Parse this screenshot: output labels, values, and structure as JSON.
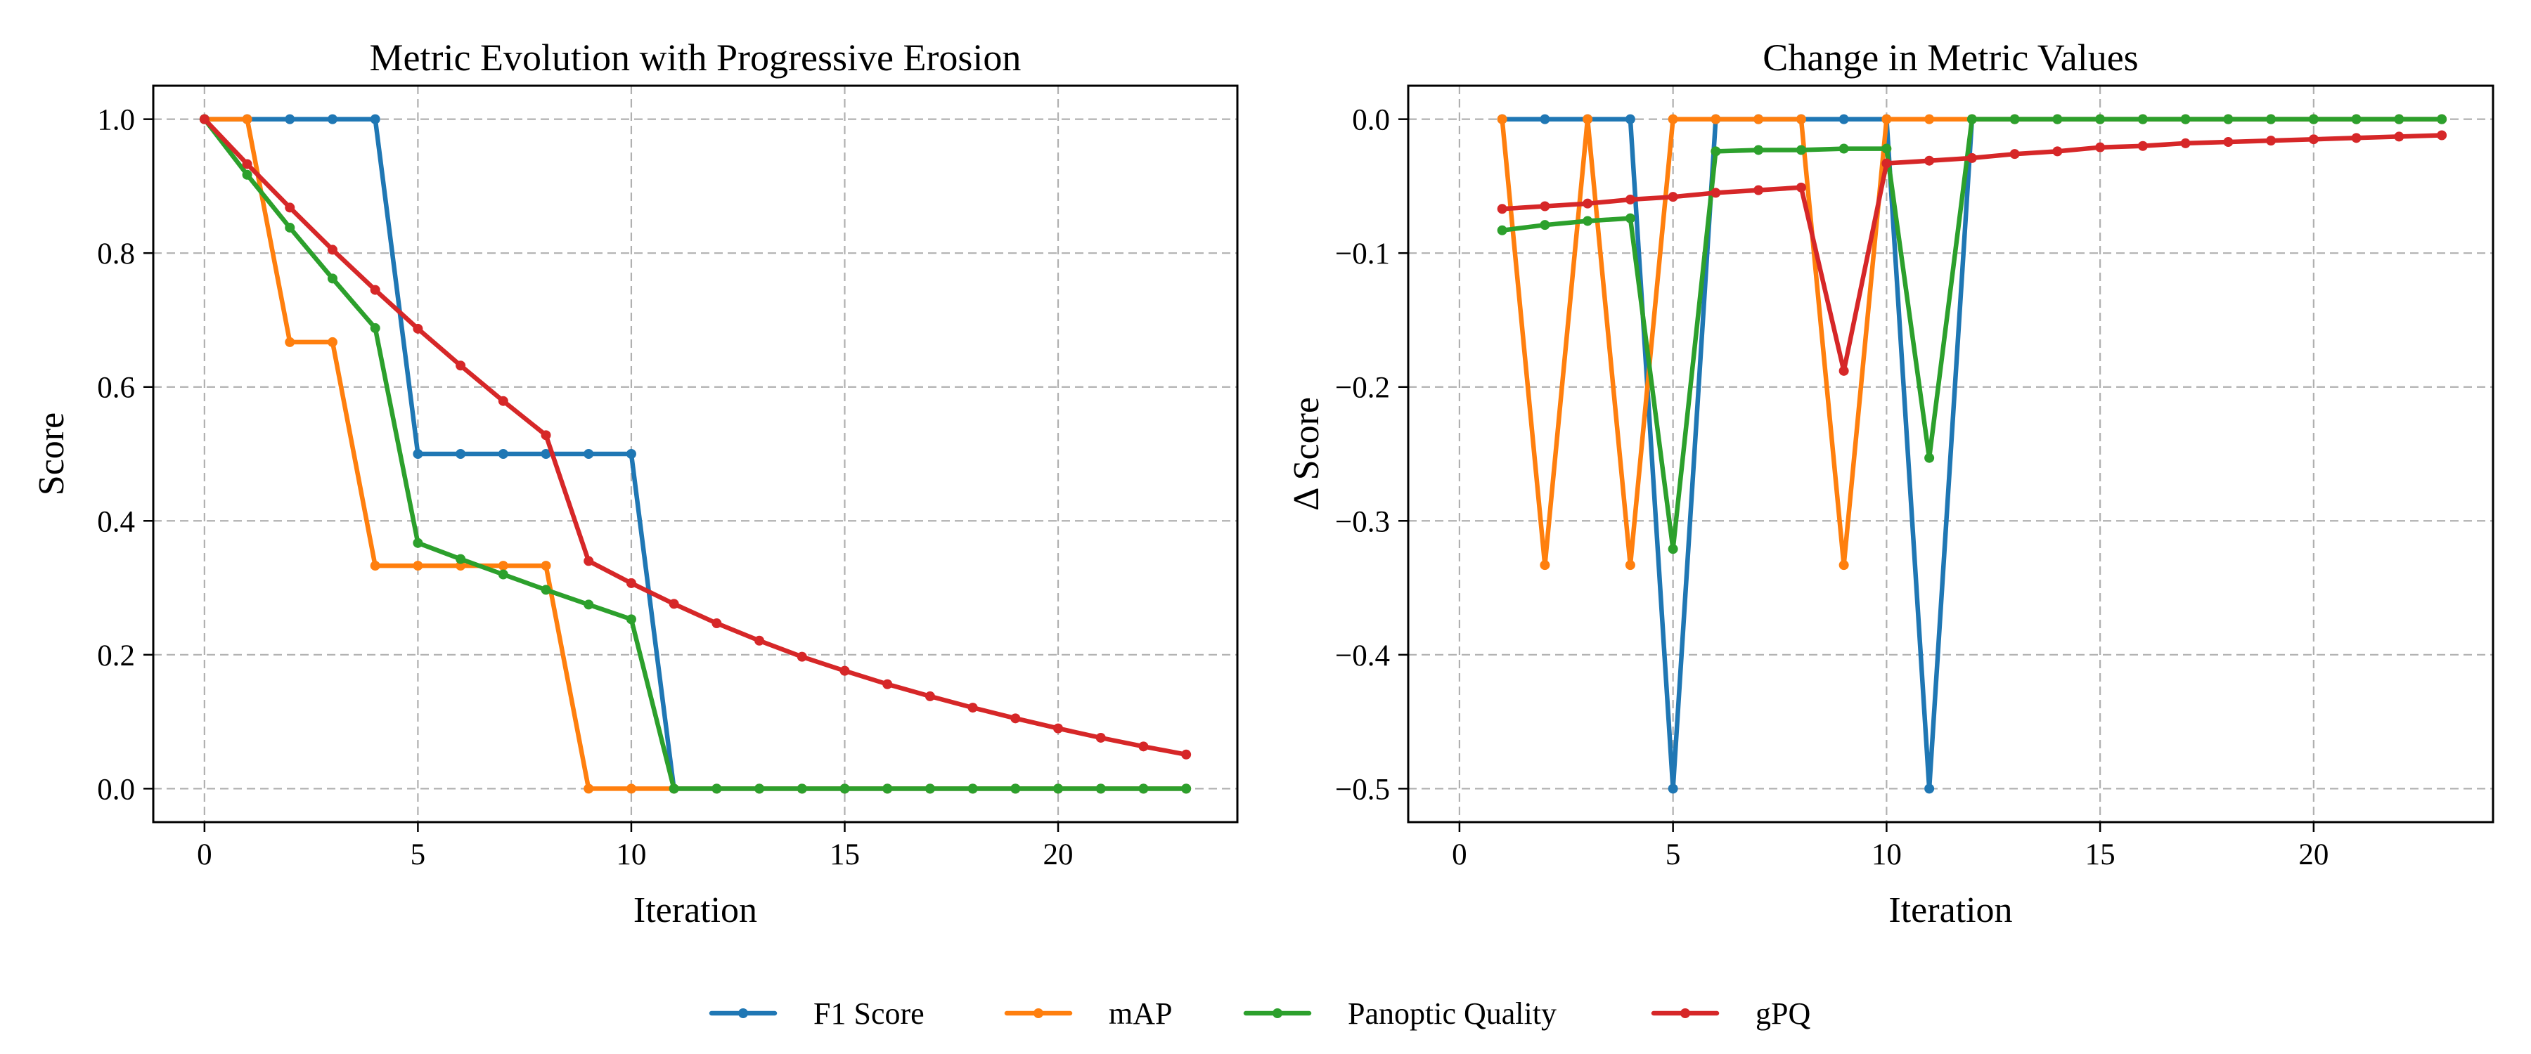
{
  "chart_data": [
    {
      "type": "line",
      "title": "Metric Evolution with Progressive Erosion",
      "xlabel": "Iteration",
      "ylabel": "Score",
      "xlim": [
        -1.2,
        24.2
      ],
      "ylim": [
        -0.05,
        1.05
      ],
      "xticks": [
        0,
        5,
        10,
        15,
        20
      ],
      "yticks": [
        0.0,
        0.2,
        0.4,
        0.6,
        0.8,
        1.0
      ],
      "ytick_labels": [
        "0.0",
        "0.2",
        "0.4",
        "0.6",
        "0.8",
        "1.0"
      ],
      "grid": true,
      "series": [
        {
          "name": "F1 Score",
          "x": [
            0,
            1,
            2,
            3,
            4,
            5,
            6,
            7,
            8,
            9,
            10,
            11,
            12,
            13,
            14,
            15,
            16,
            17,
            18,
            19,
            20,
            21,
            22,
            23
          ],
          "values": [
            1.0,
            1.0,
            1.0,
            1.0,
            1.0,
            0.5,
            0.5,
            0.5,
            0.5,
            0.5,
            0.5,
            0,
            0,
            0,
            0,
            0,
            0,
            0,
            0,
            0,
            0,
            0,
            0,
            0
          ]
        },
        {
          "name": "mAP",
          "x": [
            0,
            1,
            2,
            3,
            4,
            5,
            6,
            7,
            8,
            9,
            10,
            11,
            12,
            13,
            14,
            15,
            16,
            17,
            18,
            19,
            20,
            21,
            22,
            23
          ],
          "values": [
            1.0,
            1.0,
            0.667,
            0.667,
            0.333,
            0.333,
            0.333,
            0.333,
            0.333,
            0,
            0,
            0,
            0,
            0,
            0,
            0,
            0,
            0,
            0,
            0,
            0,
            0,
            0,
            0
          ]
        },
        {
          "name": "Panoptic Quality",
          "x": [
            0,
            1,
            2,
            3,
            4,
            5,
            6,
            7,
            8,
            9,
            10,
            11,
            12,
            13,
            14,
            15,
            16,
            17,
            18,
            19,
            20,
            21,
            22,
            23
          ],
          "values": [
            1.0,
            0.917,
            0.838,
            0.762,
            0.688,
            0.367,
            0.343,
            0.32,
            0.297,
            0.275,
            0.253,
            0,
            0,
            0,
            0,
            0,
            0,
            0,
            0,
            0,
            0,
            0,
            0,
            0
          ]
        },
        {
          "name": "gPQ",
          "x": [
            0,
            1,
            2,
            3,
            4,
            5,
            6,
            7,
            8,
            9,
            10,
            11,
            12,
            13,
            14,
            15,
            16,
            17,
            18,
            19,
            20,
            21,
            22,
            23
          ],
          "values": [
            1.0,
            0.933,
            0.868,
            0.805,
            0.745,
            0.687,
            0.632,
            0.579,
            0.528,
            0.34,
            0.307,
            0.276,
            0.247,
            0.221,
            0.197,
            0.176,
            0.156,
            0.138,
            0.121,
            0.105,
            0.09,
            0.076,
            0.063,
            0.051
          ]
        }
      ]
    },
    {
      "type": "line",
      "title": "Change in Metric Values",
      "xlabel": "Iteration",
      "ylabel": "Δ Score",
      "xlim": [
        -1.2,
        24.2
      ],
      "ylim": [
        -0.525,
        0.025
      ],
      "xticks": [
        0,
        5,
        10,
        15,
        20
      ],
      "yticks": [
        0.0,
        -0.1,
        -0.2,
        -0.3,
        -0.4,
        -0.5
      ],
      "ytick_labels": [
        "0.0",
        "−0.1",
        "−0.2",
        "−0.3",
        "−0.4",
        "−0.5"
      ],
      "grid": true,
      "series": [
        {
          "name": "F1 Score",
          "x": [
            1,
            2,
            3,
            4,
            5,
            6,
            7,
            8,
            9,
            10,
            11,
            12,
            13,
            14,
            15,
            16,
            17,
            18,
            19,
            20,
            21,
            22,
            23
          ],
          "values": [
            0,
            0,
            0,
            0,
            -0.5,
            0,
            0,
            0,
            0,
            0,
            -0.5,
            0,
            0,
            0,
            0,
            0,
            0,
            0,
            0,
            0,
            0,
            0,
            0
          ]
        },
        {
          "name": "mAP",
          "x": [
            1,
            2,
            3,
            4,
            5,
            6,
            7,
            8,
            9,
            10,
            11,
            12,
            13,
            14,
            15,
            16,
            17,
            18,
            19,
            20,
            21,
            22,
            23
          ],
          "values": [
            0,
            -0.333,
            0,
            -0.333,
            0,
            0,
            0,
            0,
            -0.333,
            0,
            0,
            0,
            0,
            0,
            0,
            0,
            0,
            0,
            0,
            0,
            0,
            0,
            0
          ]
        },
        {
          "name": "Panoptic Quality",
          "x": [
            1,
            2,
            3,
            4,
            5,
            6,
            7,
            8,
            9,
            10,
            11,
            12,
            13,
            14,
            15,
            16,
            17,
            18,
            19,
            20,
            21,
            22,
            23
          ],
          "values": [
            -0.083,
            -0.079,
            -0.076,
            -0.074,
            -0.321,
            -0.024,
            -0.023,
            -0.023,
            -0.022,
            -0.022,
            -0.253,
            0,
            0,
            0,
            0,
            0,
            0,
            0,
            0,
            0,
            0,
            0,
            0
          ]
        },
        {
          "name": "gPQ",
          "x": [
            1,
            2,
            3,
            4,
            5,
            6,
            7,
            8,
            9,
            10,
            11,
            12,
            13,
            14,
            15,
            16,
            17,
            18,
            19,
            20,
            21,
            22,
            23
          ],
          "values": [
            -0.067,
            -0.065,
            -0.063,
            -0.06,
            -0.058,
            -0.055,
            -0.053,
            -0.051,
            -0.188,
            -0.033,
            -0.031,
            -0.029,
            -0.026,
            -0.024,
            -0.021,
            -0.02,
            -0.018,
            -0.017,
            -0.016,
            -0.015,
            -0.014,
            -0.013,
            -0.012
          ]
        }
      ]
    }
  ],
  "legend": {
    "placement": "bottom-center",
    "items": [
      {
        "label": "F1 Score",
        "color": "#1f77b4"
      },
      {
        "label": "mAP",
        "color": "#ff7f0e"
      },
      {
        "label": "Panoptic Quality",
        "color": "#2ca02c"
      },
      {
        "label": "gPQ",
        "color": "#d62728"
      }
    ]
  }
}
